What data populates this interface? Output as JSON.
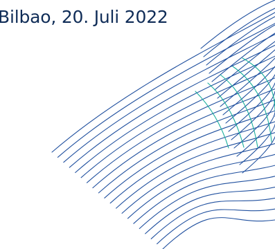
{
  "document": {
    "dateline": "Bilbao, 20. Juli 2022"
  },
  "colors": {
    "text": "#0f2c57",
    "line_blue": "#1f4f9e",
    "line_teal": "#1aae9c"
  }
}
